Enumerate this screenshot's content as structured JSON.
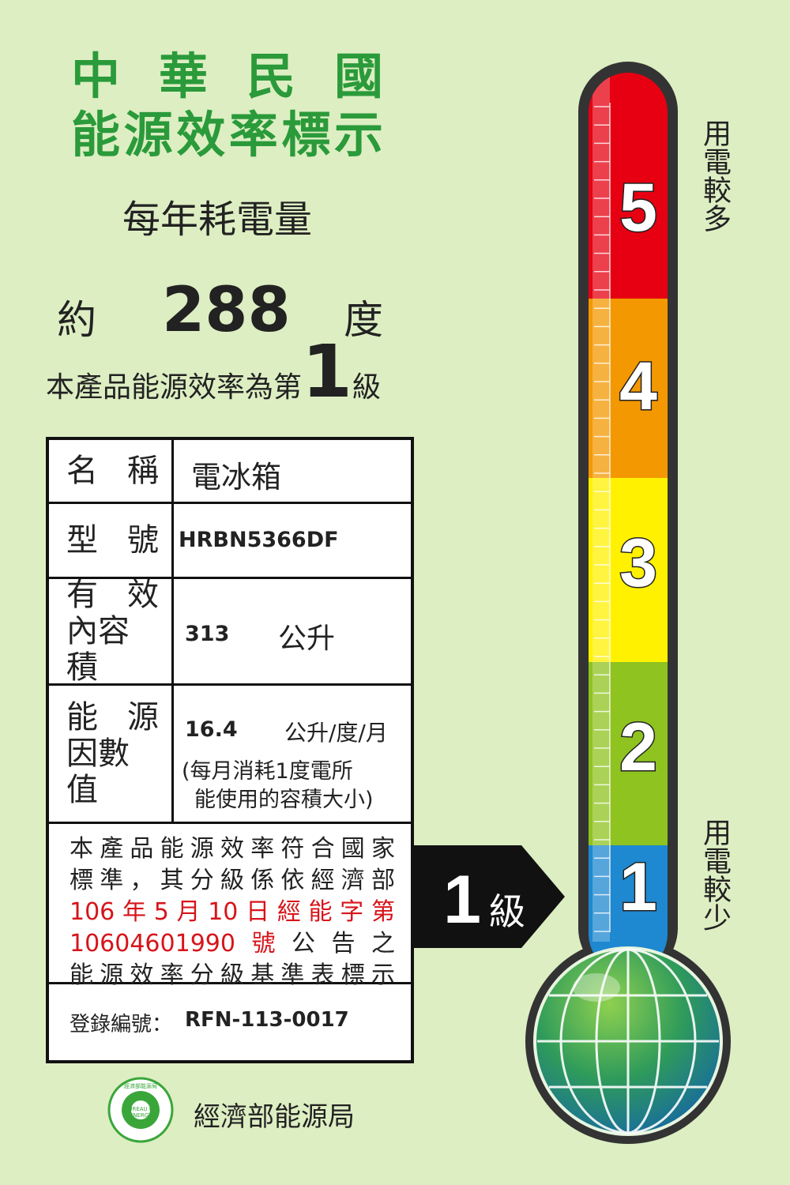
{
  "header": {
    "title": [
      "中華民國",
      "能源效率標示"
    ],
    "subtitle": "每年耗電量"
  },
  "consumption": {
    "prefix": "約",
    "value": 288,
    "unit": "度"
  },
  "rating": {
    "text": "本產品能源效率為第",
    "grade": 1,
    "suffix": "級"
  },
  "table": {
    "rows": [
      {
        "label": [
          "名稱"
        ],
        "value": "電冰箱"
      },
      {
        "label": [
          "型號"
        ],
        "value": "HRBN5366DF"
      },
      {
        "label": [
          "有效",
          "內容積"
        ],
        "value": 313,
        "unit": "公升"
      },
      {
        "label": [
          "能源",
          "因數值"
        ],
        "value": 16.4,
        "unit": "公升/度/月",
        "note": [
          "(每月消耗1度電所",
          "能使用的容積大小)"
        ]
      }
    ]
  },
  "statement": [
    [
      {
        "text": "本產品能源效率符合國家",
        "color": "#222222"
      }
    ],
    [
      {
        "text": "標準，其分級係依經濟部",
        "color": "#222222"
      }
    ],
    [
      {
        "text": "106年5月10日經能字第",
        "color": "#d7141a"
      }
    ],
    [
      {
        "text": "10604601990號",
        "color": "#d7141a"
      },
      {
        "text": "公告之",
        "color": "#222222"
      }
    ],
    [
      {
        "text": "能源效率分級基準表標示",
        "color": "#222222"
      }
    ]
  ],
  "registration": {
    "label": "登錄編號：",
    "number": "RFN-113-0017"
  },
  "footer": {
    "logo_cn": "經濟部能源局",
    "logo_en": "BUREAU OF ENERGY",
    "agency": "經濟部能源局"
  },
  "thermometer": {
    "top_text": "用電較多",
    "bottom_text": "用電較少",
    "levels": [
      {
        "label": 5,
        "color": "#e60012"
      },
      {
        "label": 4,
        "color": "#f39800"
      },
      {
        "label": 3,
        "color": "#fff100"
      },
      {
        "label": 2,
        "color": "#8fc31f"
      },
      {
        "label": 1,
        "color": "#1e88d0"
      }
    ]
  }
}
